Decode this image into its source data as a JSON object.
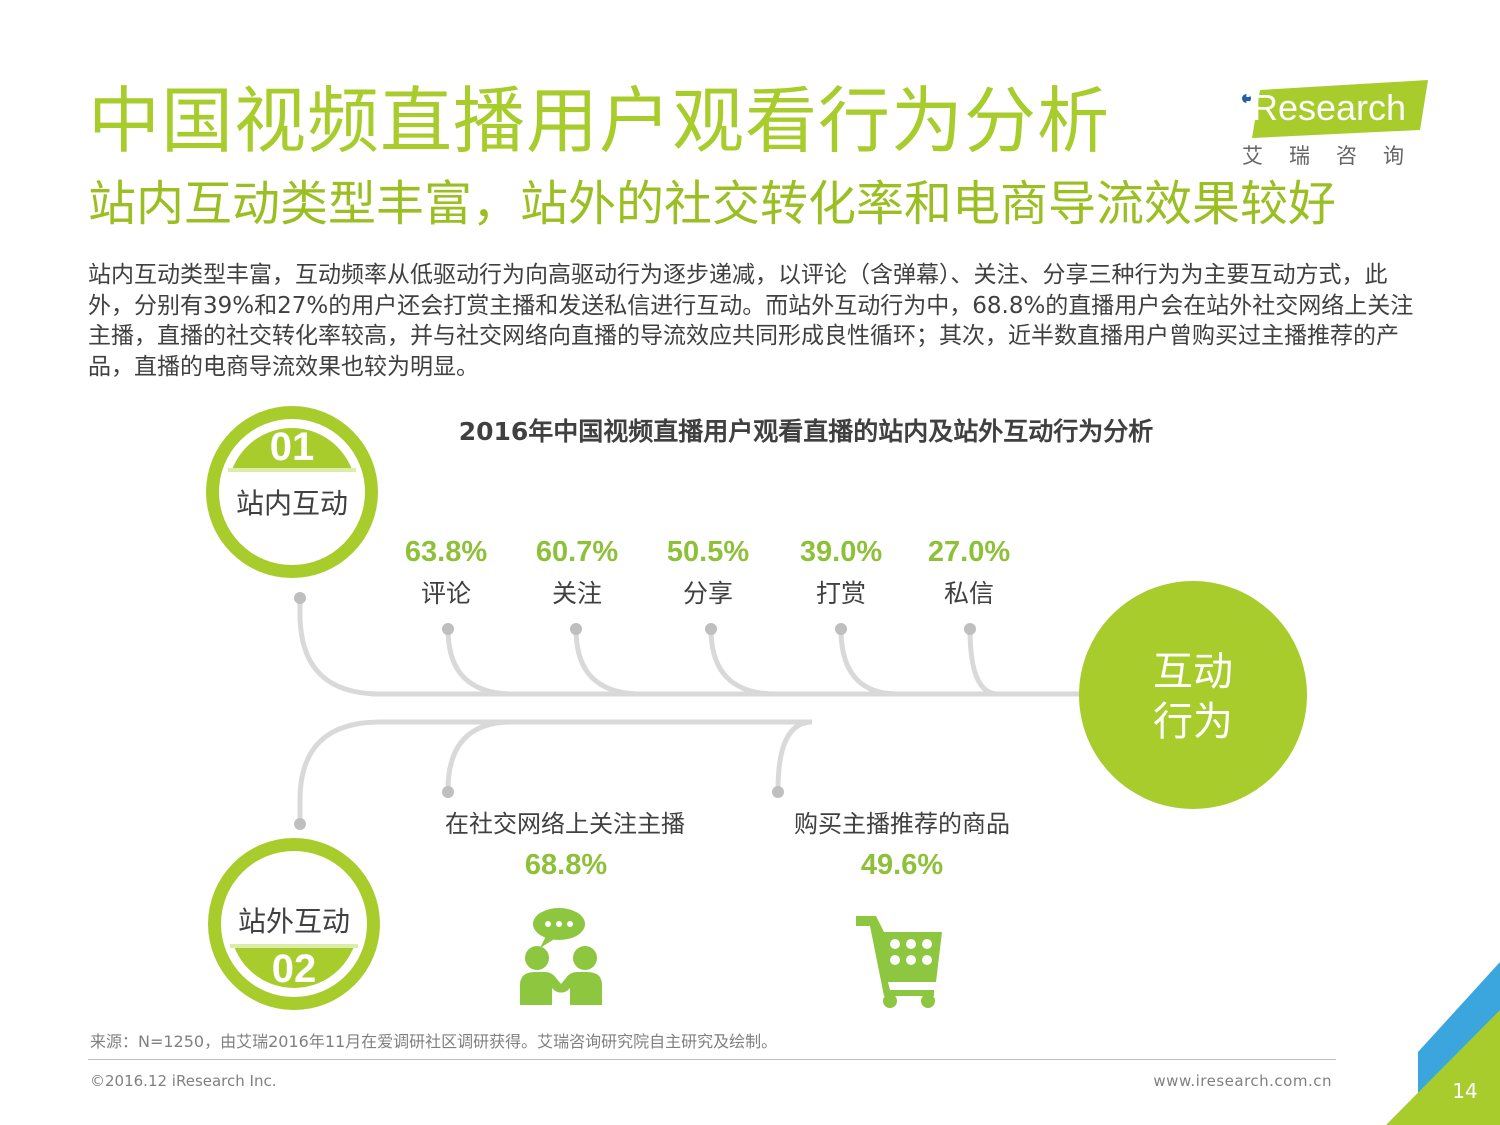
{
  "page": {
    "title": "中国视频直播用户观看行为分析",
    "subtitle": "站内互动类型丰富，站外的社交转化率和电商导流效果较好",
    "summary": "站内互动类型丰富，互动频率从低驱动行为向高驱动行为逐步递减，以评论（含弹幕）、关注、分享三种行为为主要互动方式，此外，分别有39%和27%的用户还会打赏主播和发送私信进行互动。而站外互动行为中，68.8%的直播用户会在站外社交网络上关注主播，直播的社交转化率较高，并与社交网络向直播的导流效应共同形成良性循环；其次，近半数直播用户曾购买过主播推荐的产品，直播的电商导流效果也较为明显。"
  },
  "logo": {
    "brand": "iResearch",
    "tagline": "艾瑞咨询",
    "brand_color": "#a8cc2c",
    "dot_color": "#2160a8"
  },
  "diagram": {
    "hub": {
      "line1": "互动",
      "line2": "行为"
    },
    "onsite_badge": {
      "number": "01",
      "label": "站内互动"
    },
    "offsite_badge": {
      "number": "02",
      "label": "站外互动"
    },
    "colors": {
      "accent": "#a8cc2c",
      "value_green": "#8ec03a",
      "badge_light": "#dcedaa",
      "line_gray": "#d9d9d9",
      "dot_gray": "#bfbfbf",
      "icon_green": "#8dc63f"
    },
    "icons": {
      "social": "people-chat-icon",
      "shopping": "shopping-cart-icon"
    }
  },
  "chart_data": {
    "type": "bar",
    "title": "2016年中国视频直播用户观看直播的站内及站外互动行为分析",
    "unit": "%",
    "groups": [
      {
        "name": "站内互动",
        "categories": [
          "评论",
          "关注",
          "分享",
          "打赏",
          "私信"
        ],
        "values": [
          63.8,
          60.7,
          50.5,
          39.0,
          27.0
        ],
        "labels": [
          "63.8%",
          "60.7%",
          "50.5%",
          "39.0%",
          "27.0%"
        ]
      },
      {
        "name": "站外互动",
        "categories": [
          "在社交网络上关注主播",
          "购买主播推荐的商品"
        ],
        "values": [
          68.8,
          49.6
        ],
        "labels": [
          "68.8%",
          "49.6%"
        ]
      }
    ]
  },
  "footer": {
    "source": "来源：N=1250，由艾瑞2016年11月在爱调研社区调研获得。艾瑞咨询研究院自主研究及绘制。",
    "copyright": "©2016.12 iResearch Inc.",
    "website": "www.iresearch.com.cn",
    "page_number": "14"
  }
}
